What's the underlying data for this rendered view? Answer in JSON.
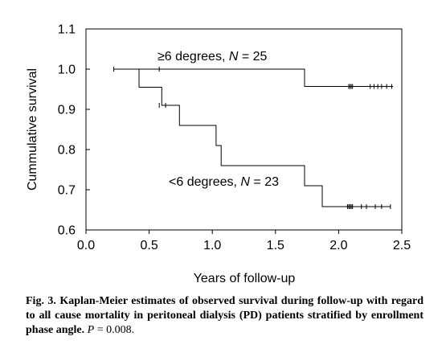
{
  "chart_data": {
    "type": "line",
    "step": true,
    "xlabel": "Years of follow-up",
    "ylabel": "Cummulative survival",
    "xlim": [
      0.0,
      2.5
    ],
    "ylim": [
      0.6,
      1.1
    ],
    "x_ticks": [
      "0.0",
      "0.5",
      "1.0",
      "1.5",
      "2.0",
      "2.5"
    ],
    "y_ticks": [
      "0.6",
      "0.7",
      "0.8",
      "0.9",
      "1.0",
      "1.1"
    ],
    "grid": false,
    "series": [
      {
        "label_prefix": "≥6 degrees, ",
        "label_n": "N",
        "label_suffix": " = 25",
        "steps": [
          [
            0.22,
            1.0
          ],
          [
            1.73,
            1.0
          ],
          [
            1.73,
            0.957
          ],
          [
            2.43,
            0.957
          ]
        ],
        "censored": [
          [
            0.22,
            1.0
          ],
          [
            0.58,
            1.0
          ],
          [
            2.08,
            0.957
          ],
          [
            2.09,
            0.957
          ],
          [
            2.1,
            0.957
          ],
          [
            2.11,
            0.957
          ],
          [
            2.25,
            0.957
          ],
          [
            2.28,
            0.957
          ],
          [
            2.31,
            0.957
          ],
          [
            2.34,
            0.957
          ],
          [
            2.38,
            0.957
          ],
          [
            2.42,
            0.957
          ]
        ]
      },
      {
        "label_prefix": "<6 degrees, ",
        "label_n": "N",
        "label_suffix": " = 23",
        "steps": [
          [
            0.42,
            1.0
          ],
          [
            0.42,
            0.955
          ],
          [
            0.6,
            0.955
          ],
          [
            0.6,
            0.91
          ],
          [
            0.74,
            0.91
          ],
          [
            0.74,
            0.86
          ],
          [
            1.03,
            0.86
          ],
          [
            1.03,
            0.81
          ],
          [
            1.07,
            0.81
          ],
          [
            1.07,
            0.76
          ],
          [
            1.73,
            0.76
          ],
          [
            1.73,
            0.71
          ],
          [
            1.87,
            0.71
          ],
          [
            1.87,
            0.658
          ],
          [
            2.41,
            0.658
          ]
        ],
        "censored": [
          [
            0.58,
            0.91
          ],
          [
            0.63,
            0.91
          ],
          [
            2.07,
            0.658
          ],
          [
            2.08,
            0.658
          ],
          [
            2.09,
            0.658
          ],
          [
            2.1,
            0.658
          ],
          [
            2.11,
            0.658
          ],
          [
            2.18,
            0.658
          ],
          [
            2.22,
            0.658
          ],
          [
            2.29,
            0.658
          ],
          [
            2.34,
            0.658
          ],
          [
            2.41,
            0.658
          ]
        ]
      }
    ]
  },
  "caption": {
    "bold": "Fig. 3. Kaplan-Meier estimates of observed survival during follow-up with regard to all cause mortality in peritoneal dialysis (PD) patients stratified by enrollment phase angle.",
    "p_symbol": "P",
    "p_value": " = 0.008."
  }
}
